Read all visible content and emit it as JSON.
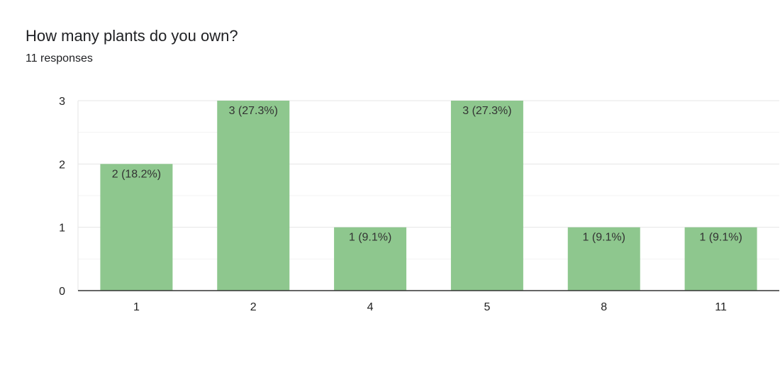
{
  "header": {
    "title": "How many plants do you own?",
    "subtitle": "11 responses"
  },
  "colors": {
    "bar": "#8ec78e",
    "gridline": "#e6e6e6",
    "minor_gridline": "#f3f3f3",
    "axis": "#333333"
  },
  "chart_data": {
    "type": "bar",
    "title": "How many plants do you own?",
    "subtitle": "11 responses",
    "categories": [
      "1",
      "2",
      "4",
      "5",
      "8",
      "11"
    ],
    "values": [
      2,
      3,
      1,
      3,
      1,
      1
    ],
    "data_labels": [
      "2 (18.2%)",
      "3 (27.3%)",
      "1 (9.1%)",
      "3 (27.3%)",
      "1 (9.1%)",
      "1 (9.1%)"
    ],
    "xlabel": "",
    "ylabel": "",
    "ylim": [
      0,
      3
    ],
    "yticks": [
      0,
      1,
      2,
      3
    ],
    "grid": true,
    "legend": "none"
  }
}
